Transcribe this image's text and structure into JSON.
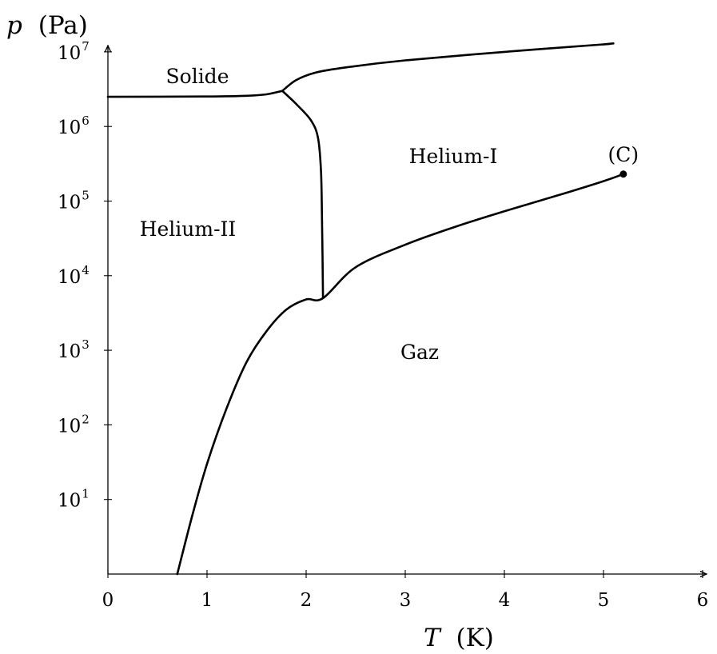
{
  "chart_data": {
    "type": "line",
    "xlabel_var": "T",
    "xlabel_unit": "(K)",
    "ylabel_var": "p",
    "ylabel_unit": "(Pa)",
    "xlim": [
      0,
      6
    ],
    "ylim_log10": [
      0,
      7
    ],
    "y_scale": "log",
    "x_ticks": [
      0,
      1,
      2,
      3,
      4,
      5,
      6
    ],
    "y_ticks": [
      {
        "base": "10",
        "exp": "1"
      },
      {
        "base": "10",
        "exp": "2"
      },
      {
        "base": "10",
        "exp": "3"
      },
      {
        "base": "10",
        "exp": "4"
      },
      {
        "base": "10",
        "exp": "5"
      },
      {
        "base": "10",
        "exp": "6"
      },
      {
        "base": "10",
        "exp": "7"
      }
    ],
    "regions": {
      "solid": "Solide",
      "helium1": "Helium-I",
      "helium2": "Helium-II",
      "gas": "Gaz"
    },
    "critical_point": {
      "label": "(C)",
      "T": 5.2,
      "p": 230000
    },
    "series": [
      {
        "key": "melting_curve_low",
        "points": [
          [
            0,
            2500000
          ],
          [
            1.0,
            2520000
          ],
          [
            1.4,
            2580000
          ],
          [
            1.6,
            2700000
          ],
          [
            1.76,
            3000000
          ]
        ]
      },
      {
        "key": "melting_curve_high",
        "points": [
          [
            1.76,
            3000000
          ],
          [
            1.9,
            4200000
          ],
          [
            2.1,
            5300000
          ],
          [
            2.4,
            6200000
          ],
          [
            3.0,
            7700000
          ],
          [
            4.0,
            10000000
          ],
          [
            5.0,
            12600000
          ],
          [
            5.0,
            12600000
          ],
          [
            5.1,
            13000000
          ]
        ]
      },
      {
        "key": "lambda_line",
        "points": [
          [
            1.76,
            3000000
          ],
          [
            1.9,
            2000000
          ],
          [
            2.05,
            1200000
          ],
          [
            2.12,
            700000
          ],
          [
            2.15,
            250000
          ],
          [
            2.16,
            60000
          ],
          [
            2.17,
            5000
          ]
        ]
      },
      {
        "key": "vaporization_curve",
        "points": [
          [
            0.7,
            1
          ],
          [
            0.85,
            6
          ],
          [
            1.0,
            30
          ],
          [
            1.2,
            170
          ],
          [
            1.4,
            700
          ],
          [
            1.6,
            1800
          ],
          [
            1.8,
            3500
          ],
          [
            2.0,
            4800
          ],
          [
            2.17,
            5000
          ],
          [
            2.5,
            13000
          ],
          [
            3.0,
            26000
          ],
          [
            3.5,
            45000
          ],
          [
            4.0,
            73000
          ],
          [
            4.5,
            115000
          ],
          [
            5.0,
            185000
          ],
          [
            5.2,
            230000
          ]
        ]
      }
    ]
  }
}
